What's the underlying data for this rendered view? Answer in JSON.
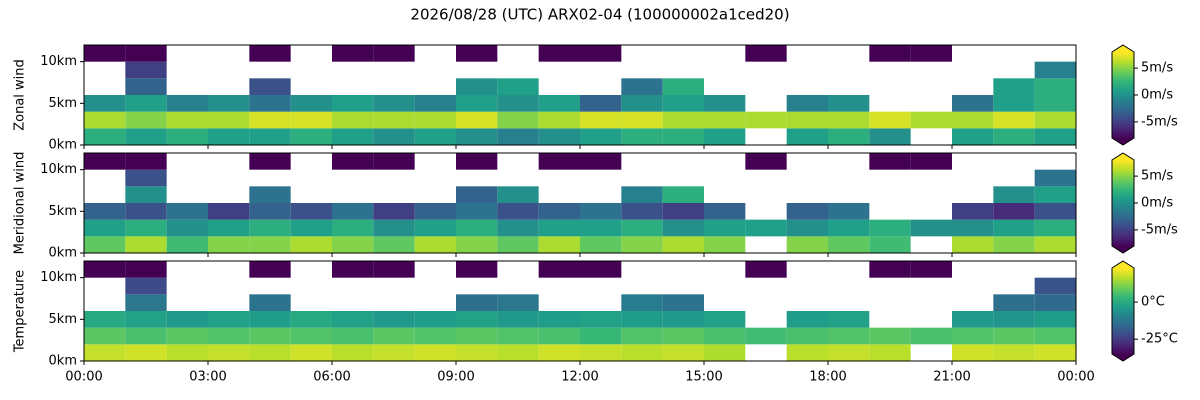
{
  "chart_data": {
    "type": "heatmap",
    "title": "2026/08/28 (UTC) ARX02-04 (100000002a1ced20)",
    "colormap": "viridis",
    "xlim": [
      0,
      24
    ],
    "xticks": [
      {
        "value": 0,
        "label": "00:00"
      },
      {
        "value": 3,
        "label": "03:00"
      },
      {
        "value": 6,
        "label": "06:00"
      },
      {
        "value": 9,
        "label": "09:00"
      },
      {
        "value": 12,
        "label": "12:00"
      },
      {
        "value": 15,
        "label": "15:00"
      },
      {
        "value": 18,
        "label": "18:00"
      },
      {
        "value": 21,
        "label": "21:00"
      },
      {
        "value": 24,
        "label": "00:00"
      }
    ],
    "xbins": [
      0,
      1,
      2,
      3,
      4,
      5,
      6,
      7,
      8,
      9,
      10,
      11,
      12,
      13,
      14,
      15,
      16,
      17,
      18,
      19,
      20,
      21,
      22,
      23,
      24
    ],
    "ybins": [
      0,
      2,
      4,
      6,
      8,
      10,
      12
    ],
    "panels": [
      {
        "ylabel": "Zonal wind",
        "ylim": [
          0,
          12
        ],
        "yticks": [
          {
            "value": 0,
            "label": "0km"
          },
          {
            "value": 5,
            "label": "5km"
          },
          {
            "value": 10,
            "label": "10km"
          }
        ],
        "clim": [
          -8,
          8
        ],
        "cticks": [
          {
            "value": 5,
            "label": "5m/s"
          },
          {
            "value": 0,
            "label": "0m/s"
          },
          {
            "value": -5,
            "label": "-5m/s"
          }
        ],
        "z": [
          [
            2,
            1,
            2,
            1,
            1,
            2,
            1,
            0,
            1,
            0,
            -1,
            0,
            1,
            2,
            2,
            1,
            null,
            1,
            2,
            0,
            null,
            1,
            2,
            1
          ],
          [
            6,
            5,
            6,
            6,
            7,
            7,
            6,
            6,
            6,
            7,
            5,
            6,
            7,
            7,
            6,
            6,
            6,
            6,
            6,
            7,
            6,
            6,
            7,
            6
          ],
          [
            0,
            1,
            -1,
            0,
            -2,
            0,
            1,
            0,
            -1,
            1,
            0,
            1,
            -3,
            0,
            1,
            0,
            null,
            -1,
            0,
            null,
            null,
            -2,
            1,
            2
          ],
          [
            null,
            -3,
            null,
            null,
            -4,
            null,
            null,
            null,
            null,
            0,
            1,
            null,
            null,
            -2,
            2,
            null,
            null,
            null,
            null,
            null,
            null,
            null,
            1,
            2
          ],
          [
            null,
            -5,
            null,
            null,
            null,
            null,
            null,
            null,
            null,
            null,
            null,
            null,
            null,
            null,
            null,
            null,
            null,
            null,
            null,
            null,
            null,
            null,
            null,
            -1
          ],
          [
            -8,
            -8,
            null,
            null,
            -9,
            null,
            -8,
            -8,
            null,
            -8,
            null,
            -8,
            -8,
            null,
            null,
            null,
            -8,
            null,
            null,
            -9,
            -9,
            null,
            null,
            null
          ]
        ]
      },
      {
        "ylabel": "Meridional wind",
        "ylim": [
          0,
          12
        ],
        "yticks": [
          {
            "value": 0,
            "label": "0km"
          },
          {
            "value": 5,
            "label": "5km"
          },
          {
            "value": 10,
            "label": "10km"
          }
        ],
        "clim": [
          -8,
          8
        ],
        "cticks": [
          {
            "value": 5,
            "label": "5m/s"
          },
          {
            "value": 0,
            "label": "0m/s"
          },
          {
            "value": -5,
            "label": "-5m/s"
          }
        ],
        "z": [
          [
            4,
            6,
            3,
            5,
            5,
            6,
            5,
            4,
            6,
            5,
            4,
            6,
            4,
            5,
            6,
            5,
            null,
            5,
            4,
            3,
            null,
            6,
            5,
            6
          ],
          [
            1,
            2,
            0,
            1,
            2,
            1,
            2,
            0,
            1,
            2,
            0,
            1,
            1,
            2,
            0,
            1,
            1,
            0,
            1,
            2,
            0,
            0,
            1,
            2
          ],
          [
            -3,
            -4,
            -2,
            -5,
            -3,
            -4,
            -2,
            -5,
            -3,
            -2,
            -4,
            -3,
            -2,
            -4,
            -5,
            -3,
            null,
            -3,
            -2,
            null,
            null,
            -5,
            -6,
            -4
          ],
          [
            null,
            0,
            null,
            null,
            -2,
            null,
            null,
            null,
            null,
            -3,
            0,
            null,
            null,
            -1,
            2,
            null,
            null,
            null,
            null,
            null,
            null,
            null,
            0,
            1
          ],
          [
            null,
            -4,
            null,
            null,
            null,
            null,
            null,
            null,
            null,
            null,
            null,
            null,
            null,
            null,
            null,
            null,
            null,
            null,
            null,
            null,
            null,
            null,
            null,
            -2
          ],
          [
            -8,
            -8,
            null,
            null,
            -9,
            null,
            -8,
            -8,
            null,
            -8,
            null,
            -8,
            -8,
            null,
            null,
            null,
            -8,
            null,
            null,
            -9,
            -9,
            null,
            null,
            null
          ]
        ]
      },
      {
        "ylabel": "Temperature",
        "ylim": [
          0,
          12
        ],
        "yticks": [
          {
            "value": 0,
            "label": "0km"
          },
          {
            "value": 5,
            "label": "5km"
          },
          {
            "value": 10,
            "label": "10km"
          }
        ],
        "clim": [
          -35,
          23
        ],
        "cticks": [
          {
            "value": 0,
            "label": "0°C"
          },
          {
            "value": -25,
            "label": "-25°C"
          }
        ],
        "z": [
          [
            18,
            19,
            17,
            18,
            17,
            19,
            17,
            18,
            19,
            18,
            17,
            19,
            18,
            17,
            18,
            16,
            null,
            17,
            18,
            17,
            null,
            19,
            18,
            19
          ],
          [
            8,
            6,
            8,
            7,
            8,
            7,
            6,
            8,
            7,
            8,
            7,
            6,
            4,
            7,
            8,
            6,
            5,
            6,
            7,
            8,
            6,
            7,
            8,
            7
          ],
          [
            0,
            -2,
            -4,
            -2,
            -3,
            0,
            -2,
            -4,
            -3,
            -2,
            -4,
            -3,
            -2,
            -3,
            -4,
            -2,
            null,
            -3,
            -2,
            null,
            null,
            -4,
            -5,
            -3
          ],
          [
            null,
            -12,
            null,
            null,
            -13,
            null,
            null,
            null,
            null,
            -14,
            -12,
            null,
            null,
            -11,
            -13,
            null,
            null,
            null,
            null,
            null,
            null,
            null,
            -14,
            -15
          ],
          [
            null,
            -22,
            null,
            null,
            null,
            null,
            null,
            null,
            null,
            null,
            null,
            null,
            null,
            null,
            null,
            null,
            null,
            null,
            null,
            null,
            null,
            null,
            null,
            -20
          ],
          [
            -45,
            -45,
            null,
            null,
            -45,
            null,
            -45,
            -45,
            null,
            -45,
            null,
            -45,
            -45,
            null,
            null,
            null,
            -45,
            null,
            null,
            -45,
            -45,
            null,
            null,
            null
          ]
        ]
      }
    ]
  }
}
